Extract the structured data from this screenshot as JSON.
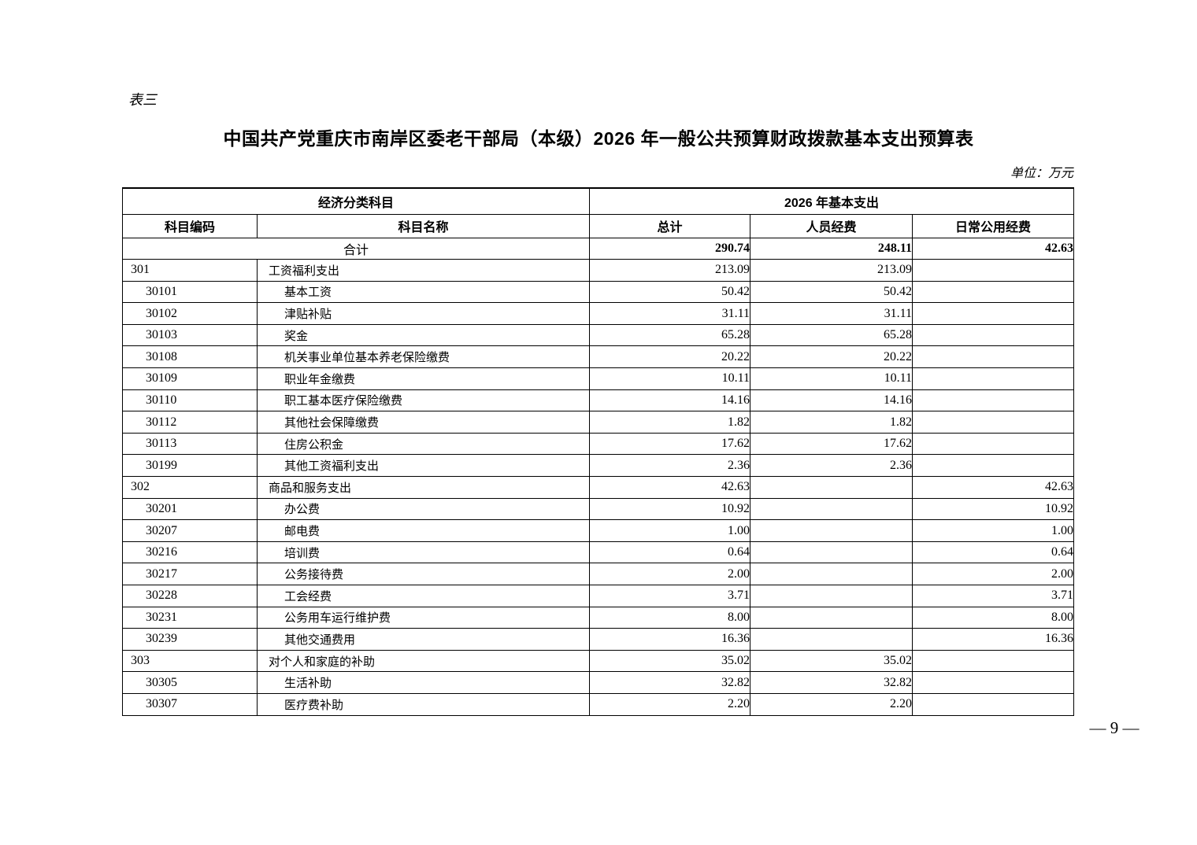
{
  "page": {
    "table_label": "表三",
    "title": "中国共产党重庆市南岸区委老干部局（本级）2026 年一般公共预算财政拨款基本支出预算表",
    "unit_note": "单位：万元",
    "page_number": "— 9 —"
  },
  "table": {
    "header": {
      "group_left": "经济分类科目",
      "group_right": "2026 年基本支出",
      "col_code": "科目编码",
      "col_name": "科目名称",
      "col_total": "总计",
      "col_personnel": "人员经费",
      "col_daily": "日常公用经费"
    },
    "total_row": {
      "label": "合计",
      "total": "290.74",
      "personnel": "248.11",
      "daily": "42.63"
    },
    "rows": [
      {
        "code": "301",
        "name": "工资福利支出",
        "total": "213.09",
        "personnel": "213.09",
        "daily": "",
        "level": 1
      },
      {
        "code": "30101",
        "name": "基本工资",
        "total": "50.42",
        "personnel": "50.42",
        "daily": "",
        "level": 2
      },
      {
        "code": "30102",
        "name": "津贴补贴",
        "total": "31.11",
        "personnel": "31.11",
        "daily": "",
        "level": 2
      },
      {
        "code": "30103",
        "name": "奖金",
        "total": "65.28",
        "personnel": "65.28",
        "daily": "",
        "level": 2
      },
      {
        "code": "30108",
        "name": "机关事业单位基本养老保险缴费",
        "total": "20.22",
        "personnel": "20.22",
        "daily": "",
        "level": 2
      },
      {
        "code": "30109",
        "name": "职业年金缴费",
        "total": "10.11",
        "personnel": "10.11",
        "daily": "",
        "level": 2
      },
      {
        "code": "30110",
        "name": "职工基本医疗保险缴费",
        "total": "14.16",
        "personnel": "14.16",
        "daily": "",
        "level": 2
      },
      {
        "code": "30112",
        "name": "其他社会保障缴费",
        "total": "1.82",
        "personnel": "1.82",
        "daily": "",
        "level": 2
      },
      {
        "code": "30113",
        "name": "住房公积金",
        "total": "17.62",
        "personnel": "17.62",
        "daily": "",
        "level": 2
      },
      {
        "code": "30199",
        "name": "其他工资福利支出",
        "total": "2.36",
        "personnel": "2.36",
        "daily": "",
        "level": 2
      },
      {
        "code": "302",
        "name": "商品和服务支出",
        "total": "42.63",
        "personnel": "",
        "daily": "42.63",
        "level": 1
      },
      {
        "code": "30201",
        "name": "办公费",
        "total": "10.92",
        "personnel": "",
        "daily": "10.92",
        "level": 2
      },
      {
        "code": "30207",
        "name": "邮电费",
        "total": "1.00",
        "personnel": "",
        "daily": "1.00",
        "level": 2
      },
      {
        "code": "30216",
        "name": "培训费",
        "total": "0.64",
        "personnel": "",
        "daily": "0.64",
        "level": 2
      },
      {
        "code": "30217",
        "name": "公务接待费",
        "total": "2.00",
        "personnel": "",
        "daily": "2.00",
        "level": 2
      },
      {
        "code": "30228",
        "name": "工会经费",
        "total": "3.71",
        "personnel": "",
        "daily": "3.71",
        "level": 2
      },
      {
        "code": "30231",
        "name": "公务用车运行维护费",
        "total": "8.00",
        "personnel": "",
        "daily": "8.00",
        "level": 2
      },
      {
        "code": "30239",
        "name": "其他交通费用",
        "total": "16.36",
        "personnel": "",
        "daily": "16.36",
        "level": 2
      },
      {
        "code": "303",
        "name": "对个人和家庭的补助",
        "total": "35.02",
        "personnel": "35.02",
        "daily": "",
        "level": 1
      },
      {
        "code": "30305",
        "name": "生活补助",
        "total": "32.82",
        "personnel": "32.82",
        "daily": "",
        "level": 2
      },
      {
        "code": "30307",
        "name": "医疗费补助",
        "total": "2.20",
        "personnel": "2.20",
        "daily": "",
        "level": 2
      }
    ]
  }
}
